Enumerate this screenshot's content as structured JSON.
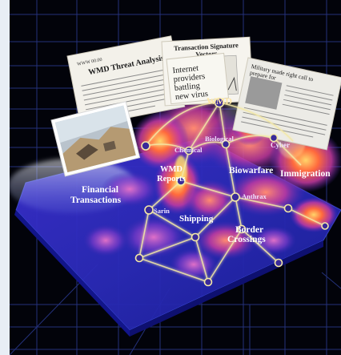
{
  "documents": {
    "threat_analysis_title": "WMD Threat Analysis",
    "internet_headline": "Internet providers battling new virus",
    "signature_title": "Transaction Signature Vectors",
    "military_headline": "Military made right call to prepare for"
  },
  "labels": {
    "wmd": "WMD",
    "biological": "Biological",
    "chemical": "Chemical",
    "cyber": "Cyber",
    "wmd_reports": "WMD Reports",
    "biowarfare": "Biowarfare",
    "immigration": "Immigration",
    "financial_transactions": "Financial Transactions",
    "anthrax": "Anthrax",
    "sarin": "Sarin",
    "shipping": "Shipping",
    "border_crossings": "Border Crossings"
  },
  "colors": {
    "background": "#02030a",
    "grid": "#2a3a8f",
    "terrain_base": "#2b2fb8",
    "peak_hot": "#ff6a3d",
    "peak_mid": "#c43aa0",
    "node_line": "#f4e9a6"
  }
}
